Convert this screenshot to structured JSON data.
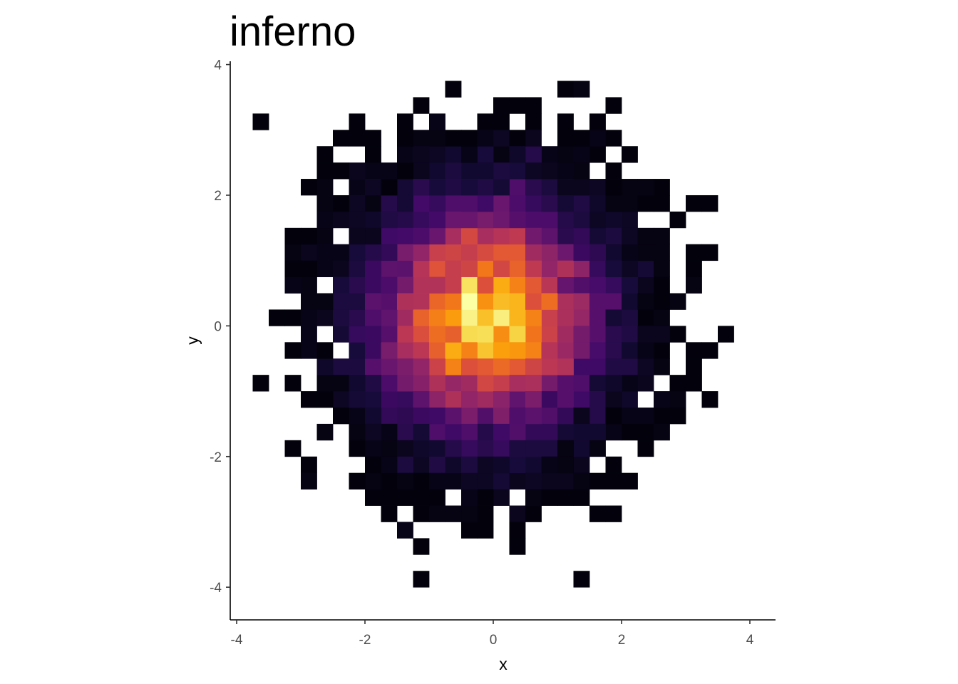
{
  "chart_data": {
    "type": "heatmap",
    "title": "inferno",
    "xlabel": "x",
    "ylabel": "y",
    "xlim": [
      -4.1,
      4.4
    ],
    "ylim": [
      -4.5,
      4.05
    ],
    "x_ticks": [
      -4,
      -2,
      0,
      2,
      4
    ],
    "y_ticks": [
      -4,
      -2,
      0,
      2,
      4
    ],
    "x_tick_labels": [
      "-4",
      "-2",
      "0",
      "2",
      "4"
    ],
    "y_tick_labels": [
      "-4",
      "-2",
      "0",
      "2",
      "4"
    ],
    "grid": false,
    "legend": "none",
    "colormap": "inferno",
    "bin_width": 0.25,
    "fill_scale": "count, dark = low, light yellow = high",
    "peak": [
      -0.1,
      0.15
    ]
  }
}
